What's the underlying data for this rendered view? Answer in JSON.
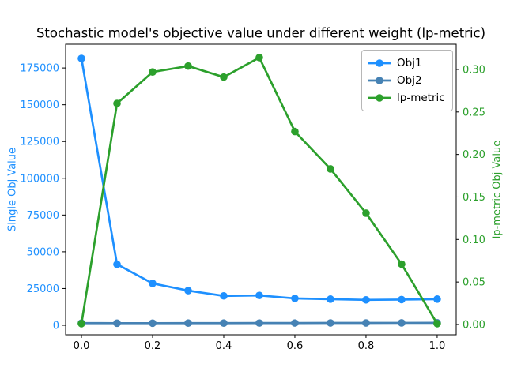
{
  "chart_data": {
    "type": "line",
    "title": "Stochastic model's objective value under different weight (lp-metric)",
    "background_color": "#ffffff",
    "spine_color": "#000000",
    "x": [
      0.0,
      0.1,
      0.2,
      0.3,
      0.4,
      0.5,
      0.6,
      0.7,
      0.8,
      0.9,
      1.0
    ],
    "series": [
      {
        "name": "Obj1",
        "axis": "left",
        "color": "#1e90ff",
        "marker": "circle",
        "values": [
          181500,
          41500,
          28500,
          23600,
          20000,
          20300,
          18300,
          17800,
          17300,
          17500,
          17800
        ]
      },
      {
        "name": "Obj2",
        "axis": "left",
        "color": "#4682b4",
        "marker": "circle",
        "values": [
          1500,
          1450,
          1450,
          1500,
          1500,
          1550,
          1550,
          1600,
          1600,
          1650,
          1700
        ]
      },
      {
        "name": "lp-metric",
        "axis": "right",
        "color": "#2ca02c",
        "marker": "circle",
        "values": [
          0.001,
          0.26,
          0.297,
          0.304,
          0.291,
          0.314,
          0.227,
          0.183,
          0.131,
          0.071,
          0.001
        ]
      }
    ],
    "x_axis": {
      "ticks": [
        "0.0",
        "0.2",
        "0.4",
        "0.6",
        "0.8",
        "1.0"
      ],
      "tick_values": [
        0.0,
        0.2,
        0.4,
        0.6,
        0.8,
        1.0
      ],
      "range": [
        -0.0445,
        1.0535
      ],
      "label_color": "#000000"
    },
    "left_axis": {
      "label": "Single Obj Value",
      "color": "#1e90ff",
      "ticks": [
        "0",
        "25000",
        "50000",
        "75000",
        "100000",
        "125000",
        "150000",
        "175000"
      ],
      "tick_values": [
        0,
        25000,
        50000,
        75000,
        100000,
        125000,
        150000,
        175000
      ],
      "range": [
        -6440,
        191170
      ]
    },
    "right_axis": {
      "label": "lp-metric Obj Value",
      "color": "#2ca02c",
      "ticks": [
        "0.00",
        "0.05",
        "0.10",
        "0.15",
        "0.20",
        "0.25",
        "0.30"
      ],
      "tick_values": [
        0.0,
        0.05,
        0.1,
        0.15,
        0.2,
        0.25,
        0.3
      ],
      "range": [
        -0.0121,
        0.3297
      ]
    },
    "legend": {
      "position": "upper right"
    },
    "grid": false
  }
}
